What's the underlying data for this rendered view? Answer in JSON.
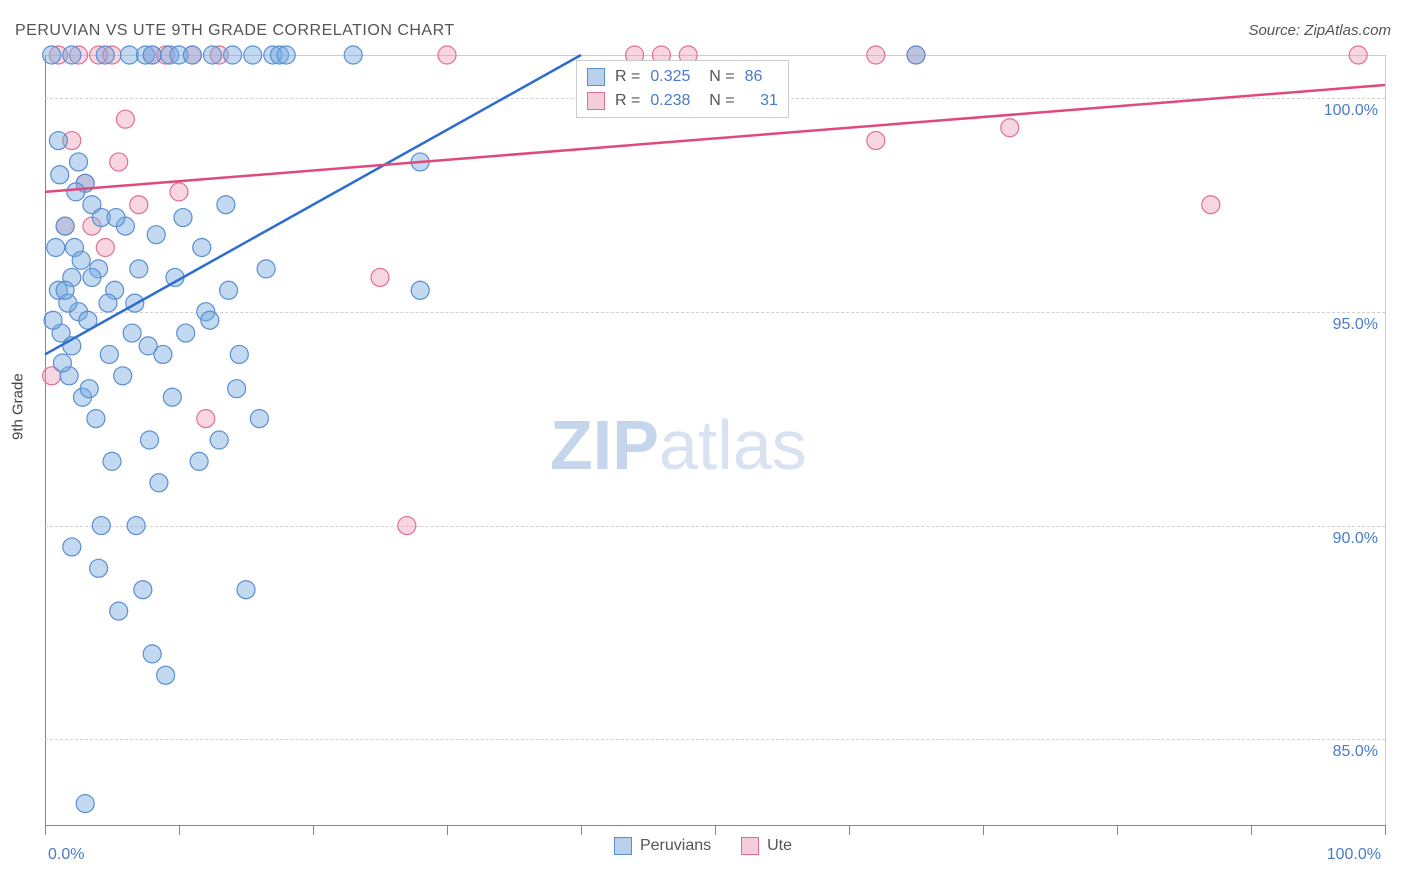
{
  "title": "PERUVIAN VS UTE 9TH GRADE CORRELATION CHART",
  "source": "Source: ZipAtlas.com",
  "ylabel": "9th Grade",
  "watermark_bold": "ZIP",
  "watermark_light": "atlas",
  "chart": {
    "type": "scatter",
    "background_color": "#ffffff",
    "grid_color": "#d0d0d0",
    "axis_color": "#888888",
    "xlim": [
      0,
      100
    ],
    "ylim": [
      83,
      101
    ],
    "x_tick_positions": [
      0,
      10,
      20,
      30,
      40,
      50,
      60,
      70,
      80,
      90,
      100
    ],
    "x_tick_labels_shown": {
      "0": "0.0%",
      "100": "100.0%"
    },
    "y_grid_positions": [
      85,
      90,
      95,
      100
    ],
    "y_tick_labels": {
      "85": "85.0%",
      "90": "90.0%",
      "95": "95.0%",
      "100": "100.0%"
    },
    "tick_label_color": "#4a7bc8",
    "tick_label_fontsize": 16,
    "title_fontsize": 16,
    "title_color": "#555555",
    "series": [
      {
        "name": "Peruvians",
        "color_fill": "rgba(120,170,225,0.45)",
        "color_stroke": "#5a8fd0",
        "swatch_fill": "#b8d0ec",
        "swatch_stroke": "#5a8fd0",
        "marker_radius": 9,
        "line_color": "#2d6cd0",
        "line_width": 2.5,
        "trend_line": {
          "x1": 0,
          "y1": 94.0,
          "x2": 40,
          "y2": 101.0
        },
        "R": "0.325",
        "N": "86",
        "points": [
          [
            0.5,
            101.0
          ],
          [
            1.0,
            95.5
          ],
          [
            1.2,
            94.5
          ],
          [
            1.5,
            97.0
          ],
          [
            1.8,
            93.5
          ],
          [
            2.0,
            101.0
          ],
          [
            2.2,
            96.5
          ],
          [
            2.5,
            95.0
          ],
          [
            2.8,
            93.0
          ],
          [
            3.0,
            98.0
          ],
          [
            3.2,
            94.8
          ],
          [
            3.5,
            97.5
          ],
          [
            3.8,
            92.5
          ],
          [
            4.0,
            96.0
          ],
          [
            4.2,
            90.0
          ],
          [
            4.5,
            101.0
          ],
          [
            4.8,
            94.0
          ],
          [
            5.0,
            91.5
          ],
          [
            5.2,
            95.5
          ],
          [
            5.5,
            88.0
          ],
          [
            5.8,
            93.5
          ],
          [
            6.0,
            97.0
          ],
          [
            6.3,
            101.0
          ],
          [
            6.5,
            94.5
          ],
          [
            6.8,
            90.0
          ],
          [
            7.0,
            96.0
          ],
          [
            7.3,
            88.5
          ],
          [
            7.5,
            101.0
          ],
          [
            7.8,
            92.0
          ],
          [
            8.0,
            101.0
          ],
          [
            8.5,
            91.0
          ],
          [
            8.8,
            94.0
          ],
          [
            9.0,
            86.5
          ],
          [
            9.3,
            101.0
          ],
          [
            9.5,
            93.0
          ],
          [
            10.0,
            101.0
          ],
          [
            10.5,
            94.5
          ],
          [
            11.0,
            101.0
          ],
          [
            11.5,
            91.5
          ],
          [
            12.0,
            95.0
          ],
          [
            12.5,
            101.0
          ],
          [
            13.0,
            92.0
          ],
          [
            13.5,
            97.5
          ],
          [
            14.0,
            101.0
          ],
          [
            14.5,
            94.0
          ],
          [
            15.0,
            88.5
          ],
          [
            15.5,
            101.0
          ],
          [
            16.0,
            92.5
          ],
          [
            16.5,
            96.0
          ],
          [
            17.0,
            101.0
          ],
          [
            17.5,
            101.0
          ],
          [
            18.0,
            101.0
          ],
          [
            23.0,
            101.0
          ],
          [
            3.0,
            83.5
          ],
          [
            2.0,
            89.5
          ],
          [
            4.0,
            89.0
          ],
          [
            2.5,
            98.5
          ],
          [
            1.0,
            99.0
          ],
          [
            0.8,
            96.5
          ],
          [
            1.3,
            93.8
          ],
          [
            2.0,
            94.2
          ],
          [
            3.5,
            95.8
          ],
          [
            4.2,
            97.2
          ],
          [
            1.7,
            95.2
          ],
          [
            2.3,
            97.8
          ],
          [
            0.6,
            94.8
          ],
          [
            1.1,
            98.2
          ],
          [
            2.7,
            96.2
          ],
          [
            3.3,
            93.2
          ],
          [
            4.7,
            95.2
          ],
          [
            5.3,
            97.2
          ],
          [
            6.7,
            95.2
          ],
          [
            7.7,
            94.2
          ],
          [
            8.3,
            96.8
          ],
          [
            9.7,
            95.8
          ],
          [
            10.3,
            97.2
          ],
          [
            11.7,
            96.5
          ],
          [
            12.3,
            94.8
          ],
          [
            13.7,
            95.5
          ],
          [
            14.3,
            93.2
          ],
          [
            2.0,
            95.8
          ],
          [
            1.5,
            95.5
          ],
          [
            28.0,
            98.5
          ],
          [
            28.0,
            95.5
          ],
          [
            65.0,
            101.0
          ],
          [
            8.0,
            87.0
          ]
        ]
      },
      {
        "name": "Ute",
        "color_fill": "rgba(235,150,180,0.40)",
        "color_stroke": "#e07090",
        "swatch_fill": "#f5cdd9",
        "swatch_stroke": "#e07090",
        "marker_radius": 9,
        "line_color": "#e04a7a",
        "line_width": 2.5,
        "trend_line": {
          "x1": 0,
          "y1": 97.8,
          "x2": 100,
          "y2": 100.3
        },
        "R": "0.238",
        "N": "31",
        "points": [
          [
            0.5,
            93.5
          ],
          [
            1.0,
            101.0
          ],
          [
            1.5,
            97.0
          ],
          [
            2.0,
            99.0
          ],
          [
            2.5,
            101.0
          ],
          [
            3.0,
            98.0
          ],
          [
            3.5,
            97.0
          ],
          [
            4.0,
            101.0
          ],
          [
            4.5,
            96.5
          ],
          [
            5.0,
            101.0
          ],
          [
            5.5,
            98.5
          ],
          [
            6.0,
            99.5
          ],
          [
            7.0,
            97.5
          ],
          [
            8.0,
            101.0
          ],
          [
            9.0,
            101.0
          ],
          [
            10.0,
            97.8
          ],
          [
            11.0,
            101.0
          ],
          [
            12.0,
            92.5
          ],
          [
            13.0,
            101.0
          ],
          [
            25.0,
            95.8
          ],
          [
            27.0,
            90.0
          ],
          [
            30.0,
            101.0
          ],
          [
            44.0,
            101.0
          ],
          [
            46.0,
            101.0
          ],
          [
            48.0,
            101.0
          ],
          [
            62.0,
            101.0
          ],
          [
            62.0,
            99.0
          ],
          [
            65.0,
            101.0
          ],
          [
            72.0,
            99.3
          ],
          [
            87.0,
            97.5
          ],
          [
            98.0,
            101.0
          ]
        ]
      }
    ],
    "legend_bottom": [
      {
        "label": "Peruvians",
        "fill": "#b8d0ec",
        "stroke": "#5a8fd0"
      },
      {
        "label": "Ute",
        "fill": "#f5cdd9",
        "stroke": "#e07090"
      }
    ]
  }
}
